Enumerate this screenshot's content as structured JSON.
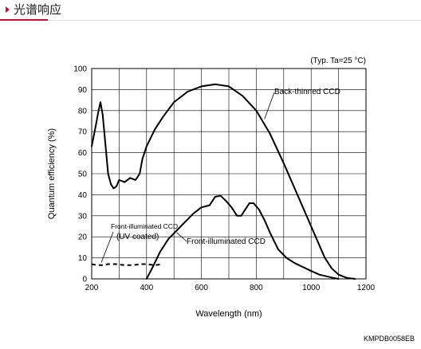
{
  "header": {
    "title": "光谱响应",
    "accent_color": "#c8102e"
  },
  "footer_code": "KMPDB0058EB",
  "chart_data": {
    "type": "line",
    "title": "",
    "condition_note": "(Typ. Ta=25 °C)",
    "xlabel": "Wavelength (nm)",
    "ylabel": "Quantum efficiency (%)",
    "xlim": [
      200,
      1200
    ],
    "ylim": [
      0,
      100
    ],
    "xticks": [
      200,
      400,
      600,
      800,
      1000,
      1200
    ],
    "yticks": [
      0,
      10,
      20,
      30,
      40,
      50,
      60,
      70,
      80,
      90,
      100
    ],
    "x_grid_step": 100,
    "grid": true,
    "series": [
      {
        "name": "Back-thinned CCD",
        "style": "solid",
        "points": [
          [
            200,
            63
          ],
          [
            215,
            73
          ],
          [
            225,
            80
          ],
          [
            232,
            84
          ],
          [
            240,
            78
          ],
          [
            250,
            64
          ],
          [
            260,
            50
          ],
          [
            270,
            45
          ],
          [
            280,
            43
          ],
          [
            290,
            44
          ],
          [
            300,
            47
          ],
          [
            320,
            46
          ],
          [
            340,
            48
          ],
          [
            360,
            47
          ],
          [
            375,
            50
          ],
          [
            385,
            57
          ],
          [
            400,
            63
          ],
          [
            430,
            71
          ],
          [
            460,
            77
          ],
          [
            500,
            84
          ],
          [
            550,
            89
          ],
          [
            600,
            91.5
          ],
          [
            650,
            92.5
          ],
          [
            700,
            91.5
          ],
          [
            750,
            87
          ],
          [
            800,
            80
          ],
          [
            850,
            69
          ],
          [
            900,
            55
          ],
          [
            950,
            40
          ],
          [
            1000,
            25
          ],
          [
            1030,
            16
          ],
          [
            1050,
            10
          ],
          [
            1075,
            5
          ],
          [
            1100,
            2
          ],
          [
            1130,
            0.5
          ],
          [
            1160,
            0
          ]
        ]
      },
      {
        "name": "Front-illuminated CCD",
        "style": "solid",
        "points": [
          [
            400,
            0
          ],
          [
            420,
            5
          ],
          [
            450,
            13
          ],
          [
            480,
            19
          ],
          [
            510,
            23
          ],
          [
            540,
            27
          ],
          [
            570,
            31
          ],
          [
            600,
            34
          ],
          [
            630,
            35
          ],
          [
            650,
            39
          ],
          [
            670,
            39.5
          ],
          [
            690,
            37
          ],
          [
            710,
            34
          ],
          [
            730,
            30
          ],
          [
            745,
            30
          ],
          [
            760,
            33
          ],
          [
            775,
            36
          ],
          [
            790,
            36
          ],
          [
            810,
            33
          ],
          [
            830,
            28
          ],
          [
            850,
            22
          ],
          [
            880,
            14
          ],
          [
            910,
            10
          ],
          [
            940,
            7.5
          ],
          [
            980,
            5
          ],
          [
            1030,
            2
          ],
          [
            1080,
            0.5
          ],
          [
            1100,
            0
          ]
        ]
      },
      {
        "name": "Front-illuminated CCD (UV coated)",
        "style": "dashed",
        "points": [
          [
            200,
            7
          ],
          [
            220,
            6.5
          ],
          [
            240,
            6.5
          ],
          [
            260,
            7
          ],
          [
            290,
            7
          ],
          [
            320,
            6.5
          ],
          [
            350,
            6.5
          ],
          [
            380,
            7
          ],
          [
            400,
            7
          ],
          [
            430,
            6.5
          ],
          [
            460,
            7
          ]
        ]
      }
    ],
    "annotations": [
      {
        "text": "Back-thinned CCD",
        "target": [
          830,
          76
        ]
      },
      {
        "text": "Front-illuminated CCD",
        "target": [
          510,
          22
        ]
      },
      {
        "text": "Front-illuminated CCD",
        "target": [
          235,
          7
        ]
      },
      {
        "text": "(UV coated)",
        "target": [
          235,
          7
        ]
      }
    ]
  }
}
